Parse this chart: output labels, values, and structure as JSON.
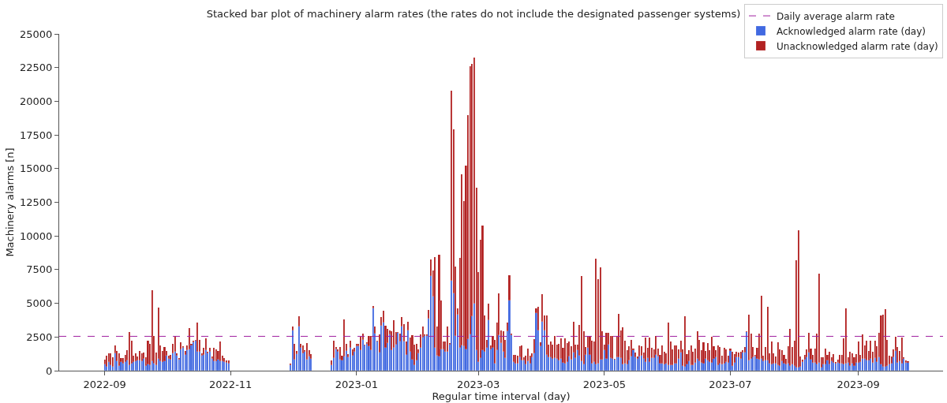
{
  "chart_data": {
    "type": "bar",
    "stacked": true,
    "title": "Stacked bar plot of machinery alarm rates (the rates do not include the designated passenger systems)",
    "xlabel": "Regular time interval (day)",
    "ylabel": "Machinery alarms [n]",
    "x": [
      "2022-09-01",
      "2022-09-02",
      "2022-09-03",
      "2022-09-04",
      "2022-09-05",
      "2022-09-06",
      "2022-09-07",
      "2022-09-08",
      "2022-09-09",
      "2022-09-10",
      "2022-09-11",
      "2022-09-12",
      "2022-09-13",
      "2022-09-14",
      "2022-09-15",
      "2022-09-16",
      "2022-09-17",
      "2022-09-18",
      "2022-09-19",
      "2022-09-20",
      "2022-09-21",
      "2022-09-22",
      "2022-09-23",
      "2022-09-24",
      "2022-09-25",
      "2022-09-26",
      "2022-09-27",
      "2022-09-28",
      "2022-09-29",
      "2022-09-30",
      "2022-10-01",
      "2022-10-02",
      "2022-10-03",
      "2022-10-04",
      "2022-10-05",
      "2022-10-06",
      "2022-10-07",
      "2022-10-08",
      "2022-10-09",
      "2022-10-10",
      "2022-10-11",
      "2022-10-12",
      "2022-10-13",
      "2022-10-14",
      "2022-10-15",
      "2022-10-16",
      "2022-10-17",
      "2022-10-18",
      "2022-10-19",
      "2022-10-20",
      "2022-10-21",
      "2022-10-22",
      "2022-10-23",
      "2022-10-24",
      "2022-10-25",
      "2022-10-26",
      "2022-10-27",
      "2022-10-28",
      "2022-10-29",
      "2022-10-30",
      "2022-10-31",
      "2022-11-30",
      "2022-12-01",
      "2022-12-02",
      "2022-12-03",
      "2022-12-04",
      "2022-12-05",
      "2022-12-06",
      "2022-12-07",
      "2022-12-08",
      "2022-12-09",
      "2022-12-10",
      "2022-12-20",
      "2022-12-21",
      "2022-12-22",
      "2022-12-23",
      "2022-12-24",
      "2022-12-25",
      "2022-12-26",
      "2022-12-27",
      "2022-12-28",
      "2022-12-29",
      "2022-12-30",
      "2022-12-31",
      "2023-01-01",
      "2023-01-02",
      "2023-01-03",
      "2023-01-04",
      "2023-01-05",
      "2023-01-06",
      "2023-01-07",
      "2023-01-08",
      "2023-01-09",
      "2023-01-10",
      "2023-01-11",
      "2023-01-12",
      "2023-01-13",
      "2023-01-14",
      "2023-01-15",
      "2023-01-16",
      "2023-01-17",
      "2023-01-18",
      "2023-01-19",
      "2023-01-20",
      "2023-01-21",
      "2023-01-22",
      "2023-01-23",
      "2023-01-24",
      "2023-01-25",
      "2023-01-26",
      "2023-01-27",
      "2023-01-28",
      "2023-01-29",
      "2023-01-30",
      "2023-01-31",
      "2023-02-01",
      "2023-02-02",
      "2023-02-03",
      "2023-02-04",
      "2023-02-05",
      "2023-02-06",
      "2023-02-07",
      "2023-02-08",
      "2023-02-09",
      "2023-02-10",
      "2023-02-11",
      "2023-02-12",
      "2023-02-13",
      "2023-02-14",
      "2023-02-15",
      "2023-02-16",
      "2023-02-17",
      "2023-02-18",
      "2023-02-19",
      "2023-02-20",
      "2023-02-21",
      "2023-02-22",
      "2023-02-23",
      "2023-02-24",
      "2023-02-25",
      "2023-02-26",
      "2023-02-27",
      "2023-02-28",
      "2023-03-01",
      "2023-03-02",
      "2023-03-03",
      "2023-03-04",
      "2023-03-05",
      "2023-03-06",
      "2023-03-07",
      "2023-03-08",
      "2023-03-09",
      "2023-03-10",
      "2023-03-11",
      "2023-03-12",
      "2023-03-13",
      "2023-03-14",
      "2023-03-15",
      "2023-03-16",
      "2023-03-17",
      "2023-03-18",
      "2023-03-19",
      "2023-03-20",
      "2023-03-21",
      "2023-03-22",
      "2023-03-23",
      "2023-03-24",
      "2023-03-25",
      "2023-03-26",
      "2023-03-27",
      "2023-03-28",
      "2023-03-29",
      "2023-03-30",
      "2023-03-31",
      "2023-04-01",
      "2023-04-02",
      "2023-04-03",
      "2023-04-04",
      "2023-04-05",
      "2023-04-06",
      "2023-04-07",
      "2023-04-08",
      "2023-04-09",
      "2023-04-10",
      "2023-04-11",
      "2023-04-12",
      "2023-04-13",
      "2023-04-14",
      "2023-04-15",
      "2023-04-16",
      "2023-04-17",
      "2023-04-18",
      "2023-04-19",
      "2023-04-20",
      "2023-04-21",
      "2023-04-22",
      "2023-04-23",
      "2023-04-24",
      "2023-04-25",
      "2023-04-26",
      "2023-04-27",
      "2023-04-28",
      "2023-04-29",
      "2023-04-30",
      "2023-05-01",
      "2023-05-02",
      "2023-05-03",
      "2023-05-04",
      "2023-05-05",
      "2023-05-06",
      "2023-05-07",
      "2023-05-08",
      "2023-05-09",
      "2023-05-10",
      "2023-05-11",
      "2023-05-12",
      "2023-05-13",
      "2023-05-14",
      "2023-05-15",
      "2023-05-16",
      "2023-05-17",
      "2023-05-18",
      "2023-05-19",
      "2023-05-20",
      "2023-05-21",
      "2023-05-22",
      "2023-05-23",
      "2023-05-24",
      "2023-05-25",
      "2023-05-26",
      "2023-05-27",
      "2023-05-28",
      "2023-05-29",
      "2023-05-30",
      "2023-05-31",
      "2023-06-01",
      "2023-06-02",
      "2023-06-03",
      "2023-06-04",
      "2023-06-05",
      "2023-06-06",
      "2023-06-07",
      "2023-06-08",
      "2023-06-09",
      "2023-06-10",
      "2023-06-11",
      "2023-06-12",
      "2023-06-13",
      "2023-06-14",
      "2023-06-15",
      "2023-06-16",
      "2023-06-17",
      "2023-06-18",
      "2023-06-19",
      "2023-06-20",
      "2023-06-21",
      "2023-06-22",
      "2023-06-23",
      "2023-06-24",
      "2023-06-25",
      "2023-06-26",
      "2023-06-27",
      "2023-06-28",
      "2023-06-29",
      "2023-06-30",
      "2023-07-01",
      "2023-07-02",
      "2023-07-03",
      "2023-07-04",
      "2023-07-05",
      "2023-07-06",
      "2023-07-07",
      "2023-07-08",
      "2023-07-09",
      "2023-07-10",
      "2023-07-11",
      "2023-07-12",
      "2023-07-13",
      "2023-07-14",
      "2023-07-15",
      "2023-07-16",
      "2023-07-17",
      "2023-07-18",
      "2023-07-19",
      "2023-07-20",
      "2023-07-21",
      "2023-07-22",
      "2023-07-23",
      "2023-07-24",
      "2023-07-25",
      "2023-07-26",
      "2023-07-27",
      "2023-07-28",
      "2023-07-29",
      "2023-07-30",
      "2023-07-31",
      "2023-08-01",
      "2023-08-02",
      "2023-08-03",
      "2023-08-04",
      "2023-08-05",
      "2023-08-06",
      "2023-08-07",
      "2023-08-08",
      "2023-08-09",
      "2023-08-10",
      "2023-08-11",
      "2023-08-12",
      "2023-08-13",
      "2023-08-14",
      "2023-08-15",
      "2023-08-16",
      "2023-08-17",
      "2023-08-18",
      "2023-08-19",
      "2023-08-20",
      "2023-08-21",
      "2023-08-22",
      "2023-08-23",
      "2023-08-24",
      "2023-08-25",
      "2023-08-26",
      "2023-08-27",
      "2023-08-28",
      "2023-08-29",
      "2023-08-30",
      "2023-08-31",
      "2023-09-01",
      "2023-09-02",
      "2023-09-03",
      "2023-09-04",
      "2023-09-05",
      "2023-09-06",
      "2023-09-07",
      "2023-09-08",
      "2023-09-09",
      "2023-09-10",
      "2023-09-11",
      "2023-09-12",
      "2023-09-13",
      "2023-09-14",
      "2023-09-15",
      "2023-09-16",
      "2023-09-17",
      "2023-09-18",
      "2023-09-19",
      "2023-09-20",
      "2023-09-21",
      "2023-09-22",
      "2023-09-23",
      "2023-09-24",
      "2023-09-25"
    ],
    "series": [
      {
        "name": "Acknowledged alarm rate (day)",
        "color": "#4169e1",
        "values": [
          450,
          300,
          650,
          400,
          300,
          1300,
          700,
          350,
          650,
          500,
          650,
          750,
          400,
          500,
          650,
          700,
          750,
          750,
          700,
          850,
          350,
          450,
          400,
          700,
          500,
          400,
          900,
          700,
          650,
          700,
          1100,
          900,
          800,
          1300,
          1400,
          1100,
          800,
          1600,
          1700,
          1200,
          1500,
          1600,
          1900,
          2100,
          2200,
          1400,
          1400,
          1100,
          1200,
          1500,
          1300,
          1400,
          900,
          700,
          700,
          800,
          700,
          700,
          650,
          600,
          500,
          400,
          3000,
          800,
          1250,
          3250,
          1700,
          1300,
          1400,
          800,
          1050,
          850,
          400,
          950,
          1600,
          1400,
          800,
          750,
          1050,
          1450,
          1000,
          1700,
          1100,
          1400,
          1800,
          1800,
          1500,
          2300,
          1900,
          2000,
          1800,
          1500,
          4650,
          2750,
          2150,
          1350,
          3350,
          3550,
          1700,
          2050,
          2700,
          1500,
          1700,
          1950,
          2800,
          2150,
          3300,
          2150,
          1200,
          3000,
          1400,
          800,
          400,
          740,
          1300,
          1700,
          2450,
          2550,
          2550,
          3850,
          7000,
          5500,
          1700,
          1100,
          1050,
          1600,
          1600,
          1400,
          1400,
          1950,
          6700,
          5750,
          2550,
          4150,
          1700,
          1900,
          1800,
          1600,
          2350,
          2700,
          4050,
          5000,
          1500,
          650,
          950,
          1500,
          1400,
          1700,
          3750,
          1600,
          1700,
          550,
          1500,
          2650,
          2050,
          1400,
          950,
          2900,
          5200,
          2650,
          650,
          550,
          550,
          1000,
          750,
          750,
          450,
          700,
          500,
          1000,
          1300,
          4250,
          3000,
          1800,
          3650,
          3000,
          1200,
          1000,
          1000,
          850,
          950,
          900,
          750,
          850,
          600,
          550,
          650,
          1050,
          800,
          1350,
          950,
          1500,
          1100,
          700,
          450,
          1200,
          1700,
          1200,
          550,
          650,
          450,
          550,
          800,
          800,
          1500,
          850,
          1950,
          950,
          850,
          800,
          1000,
          1000,
          950,
          450,
          500,
          450,
          750,
          1050,
          1500,
          1000,
          850,
          1050,
          1100,
          850,
          650,
          950,
          650,
          950,
          950,
          1200,
          1050,
          550,
          550,
          450,
          550,
          400,
          400,
          400,
          500,
          550,
          850,
          1350,
          350,
          300,
          450,
          700,
          400,
          400,
          600,
          850,
          700,
          600,
          550,
          850,
          750,
          650,
          600,
          850,
          1000,
          400,
          500,
          450,
          550,
          650,
          600,
          1450,
          350,
          600,
          1000,
          1000,
          850,
          1350,
          1350,
          2850,
          750,
          850,
          1000,
          1050,
          850,
          800,
          850,
          700,
          750,
          750,
          550,
          450,
          550,
          550,
          400,
          350,
          700,
          550,
          450,
          550,
          360,
          450,
          360,
          250,
          250,
          300,
          650,
          800,
          1000,
          1350,
          800,
          600,
          600,
          450,
          600,
          250,
          450,
          450,
          750,
          450,
          700,
          600,
          500,
          600,
          550,
          500,
          450,
          500,
          600,
          350,
          500,
          350,
          600,
          600,
          650,
          850,
          850,
          750,
          750,
          850,
          600,
          950,
          650,
          1000,
          450,
          300,
          300,
          350,
          450,
          500,
          1000,
          1450,
          600,
          700,
          550,
          850,
          600,
          600
        ]
      },
      {
        "name": "Unacknowledged alarm rate (day)",
        "color": "#b22222",
        "values": [
          350,
          800,
          650,
          900,
          700,
          550,
          750,
          950,
          300,
          450,
          550,
          750,
          2450,
          1700,
          450,
          600,
          300,
          700,
          600,
          500,
          650,
          1750,
          1600,
          5250,
          2100,
          950,
          3800,
          1150,
          800,
          1050,
          350,
          200,
          350,
          700,
          1150,
          200,
          150,
          500,
          100,
          250,
          350,
          1550,
          100,
          100,
          100,
          2200,
          900,
          200,
          500,
          900,
          100,
          300,
          150,
          1000,
          900,
          650,
          1450,
          400,
          300,
          150,
          250,
          100,
          300,
          1200,
          200,
          800,
          300,
          550,
          100,
          1250,
          450,
          400,
          350,
          1300,
          150,
          200,
          950,
          350,
          2750,
          550,
          250,
          550,
          500,
          300,
          200,
          200,
          1000,
          450,
          50,
          100,
          750,
          1100,
          150,
          500,
          100,
          1350,
          650,
          900,
          1650,
          1050,
          300,
          1400,
          2050,
          900,
          50,
          600,
          700,
          1300,
          950,
          650,
          1050,
          1850,
          1550,
          1230,
          300,
          1000,
          850,
          150,
          150,
          650,
          1250,
          1950,
          6750,
          2200,
          7550,
          3600,
          550,
          750,
          1900,
          100,
          14100,
          12150,
          5200,
          450,
          6700,
          12650,
          10800,
          13600,
          16600,
          19900,
          18750,
          18250,
          12100,
          6650,
          8750,
          9250,
          2700,
          600,
          1250,
          300,
          900,
          1750,
          2100,
          3100,
          950,
          1500,
          1350,
          650,
          1900,
          100,
          550,
          600,
          570,
          800,
          1100,
          250,
          650,
          950,
          600,
          300,
          1050,
          350,
          1750,
          300,
          2050,
          1100,
          2900,
          950,
          1150,
          1100,
          1600,
          1050,
          1250,
          1550,
          1100,
          1850,
          1400,
          1100,
          1000,
          2300,
          1000,
          450,
          2300,
          6300,
          2500,
          550,
          900,
          1400,
          1650,
          1500,
          7850,
          6250,
          6850,
          2150,
          450,
          1950,
          850,
          1650,
          1700,
          100,
          1550,
          3200,
          2050,
          2750,
          1750,
          1050,
          1050,
          1250,
          150,
          350,
          200,
          800,
          700,
          500,
          1800,
          750,
          1800,
          750,
          650,
          1400,
          600,
          650,
          1350,
          950,
          750,
          3150,
          1750,
          1200,
          1350,
          1350,
          750,
          900,
          1250,
          3750,
          800,
          850,
          1500,
          1000,
          1050,
          2050,
          1600,
          900,
          1550,
          600,
          1300,
          850,
          1900,
          950,
          550,
          1500,
          1250,
          650,
          1150,
          950,
          500,
          200,
          1050,
          650,
          400,
          350,
          550,
          150,
          400,
          100,
          3400,
          1900,
          750,
          150,
          850,
          1950,
          4700,
          400,
          1000,
          4000,
          750,
          1700,
          750,
          500,
          1700,
          1250,
          800,
          650,
          400,
          1250,
          2740,
          1290,
          1890,
          7950,
          10150,
          760,
          150,
          370,
          590,
          1470,
          830,
          570,
          1030,
          2280,
          6600,
          730,
          530,
          1180,
          420,
          950,
          280,
          610,
          140,
          200,
          620,
          670,
          1940,
          4120,
          380,
          1050,
          810,
          630,
          610,
          1560,
          520,
          1820,
          1040,
          1500,
          690,
          1400,
          800,
          1300,
          1170,
          1820,
          3640,
          3850,
          4250,
          1940,
          670,
          560,
          590,
          1090,
          1180,
          740,
          1890,
          130,
          140,
          100
        ]
      }
    ],
    "ref_lines": [
      {
        "axis": "y",
        "value": 2550,
        "label": "Daily average alarm rate",
        "color": "#a020a0",
        "line_style": "dashed"
      }
    ],
    "xlim": [
      "2022-08-10",
      "2023-10-12"
    ],
    "xticks": [
      "2022-09",
      "2022-11",
      "2023-01",
      "2023-03",
      "2023-05",
      "2023-07",
      "2023-09"
    ],
    "ylim": [
      0,
      25000
    ],
    "yticks": [
      0,
      2500,
      5000,
      7500,
      10000,
      12500,
      15000,
      17500,
      20000,
      22500,
      25000
    ],
    "legend": "top right"
  }
}
